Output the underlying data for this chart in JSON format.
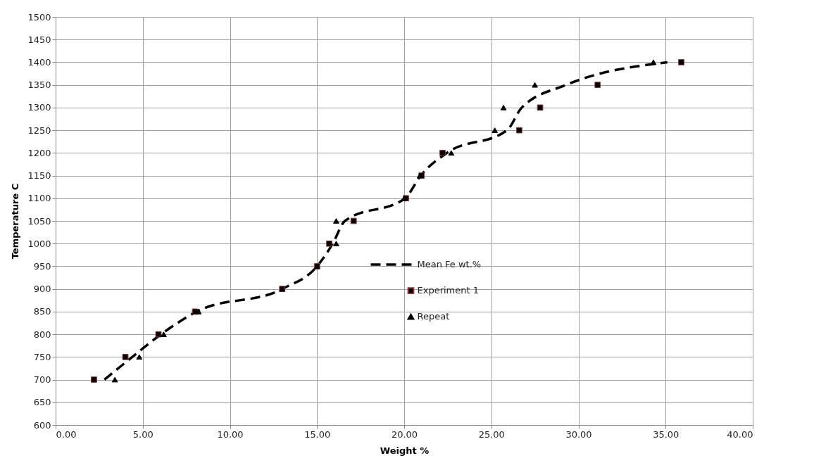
{
  "chart_data": {
    "type": "scatter",
    "xlabel": "Weight %",
    "ylabel": "Temperature C",
    "xlim": [
      0,
      40
    ],
    "ylim": [
      600,
      1500
    ],
    "xticks": [
      {
        "value": 0,
        "label": "0.00"
      },
      {
        "value": 5,
        "label": "5.00"
      },
      {
        "value": 10,
        "label": "10.00"
      },
      {
        "value": 15,
        "label": "15.00"
      },
      {
        "value": 20,
        "label": "20.00"
      },
      {
        "value": 25,
        "label": "25.00"
      },
      {
        "value": 30,
        "label": "30.00"
      },
      {
        "value": 35,
        "label": "35.00"
      },
      {
        "value": 40,
        "label": "40.00"
      }
    ],
    "yticks": [
      600,
      650,
      700,
      750,
      800,
      850,
      900,
      950,
      1000,
      1050,
      1100,
      1150,
      1200,
      1250,
      1300,
      1350,
      1400,
      1450,
      1500
    ],
    "grid": true,
    "legend": "center",
    "series": [
      {
        "name": "Mean Fe wt.%",
        "type": "line",
        "line_style": "dashed",
        "marker": "none",
        "color": "#000000",
        "x": [
          2.8,
          4.4,
          6.05,
          8.1,
          13.0,
          15.0,
          15.9,
          16.6,
          20.05,
          20.95,
          22.45,
          25.9,
          26.75,
          29.3,
          35.1
        ],
        "values": [
          700,
          750,
          800,
          850,
          900,
          950,
          1000,
          1050,
          1100,
          1150,
          1200,
          1250,
          1300,
          1350,
          1400
        ]
      },
      {
        "name": "Experiment 1",
        "type": "scatter",
        "marker": "square",
        "color": "#000000",
        "x": [
          2.2,
          4.0,
          5.9,
          8.0,
          13.0,
          15.0,
          15.7,
          17.1,
          20.1,
          21.0,
          22.2,
          26.6,
          27.8,
          31.1,
          35.9
        ],
        "values": [
          700,
          750,
          800,
          850,
          900,
          950,
          1000,
          1050,
          1100,
          1150,
          1200,
          1250,
          1300,
          1350,
          1400
        ]
      },
      {
        "name": "Repeat",
        "type": "scatter",
        "marker": "triangle",
        "color": "#000000",
        "x": [
          3.4,
          4.8,
          6.2,
          8.2,
          13.0,
          15.0,
          16.1,
          16.1,
          20.0,
          20.9,
          22.7,
          25.2,
          25.7,
          27.5,
          34.3
        ],
        "values": [
          700,
          750,
          800,
          850,
          900,
          950,
          1000,
          1050,
          1100,
          1150,
          1200,
          1250,
          1300,
          1350,
          1400
        ]
      }
    ]
  }
}
